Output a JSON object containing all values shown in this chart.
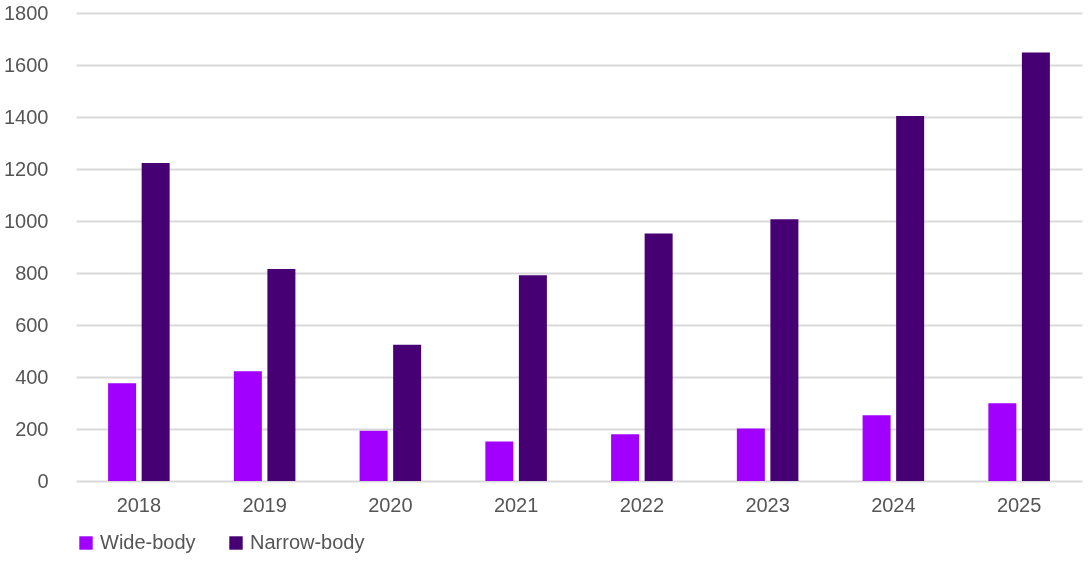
{
  "chart_data": {
    "type": "bar",
    "categories": [
      "2018",
      "2019",
      "2020",
      "2021",
      "2022",
      "2023",
      "2024",
      "2025"
    ],
    "series": [
      {
        "name": "Wide-body",
        "color": "#a100ff",
        "values": [
          376,
          422,
          193,
          152,
          180,
          202,
          253,
          299
        ]
      },
      {
        "name": "Narrow-body",
        "color": "#460073",
        "values": [
          1223,
          815,
          524,
          791,
          952,
          1007,
          1404,
          1648
        ]
      }
    ],
    "ylim": [
      0,
      1800
    ],
    "yticks": [
      0,
      200,
      400,
      600,
      800,
      1000,
      1200,
      1400,
      1600,
      1800
    ],
    "grid": "y",
    "legend": "bottom"
  }
}
